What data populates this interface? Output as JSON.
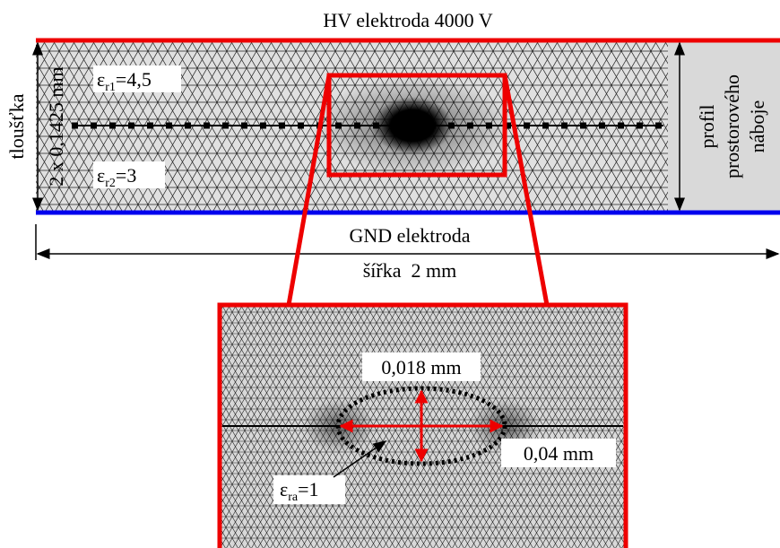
{
  "electrodes": {
    "top": "HV elektroda 4000 V",
    "bottom": "GND elektroda"
  },
  "thickness": {
    "label": "tloušťka",
    "value": "2 x 0,1425 mm"
  },
  "width": "šířka  2 mm",
  "layers": [
    {
      "symbol": "ε",
      "subscript": "r1",
      "value": "=4,5"
    },
    {
      "symbol": "ε",
      "subscript": "r2",
      "value": "=3"
    }
  ],
  "space_charge": [
    "profil",
    "prostorového",
    "náboje"
  ],
  "zoom": {
    "height": "0,018 mm",
    "width": "0,04 mm",
    "cavity": {
      "symbol": "ε",
      "subscript": "ra",
      "value": "=1"
    }
  }
}
